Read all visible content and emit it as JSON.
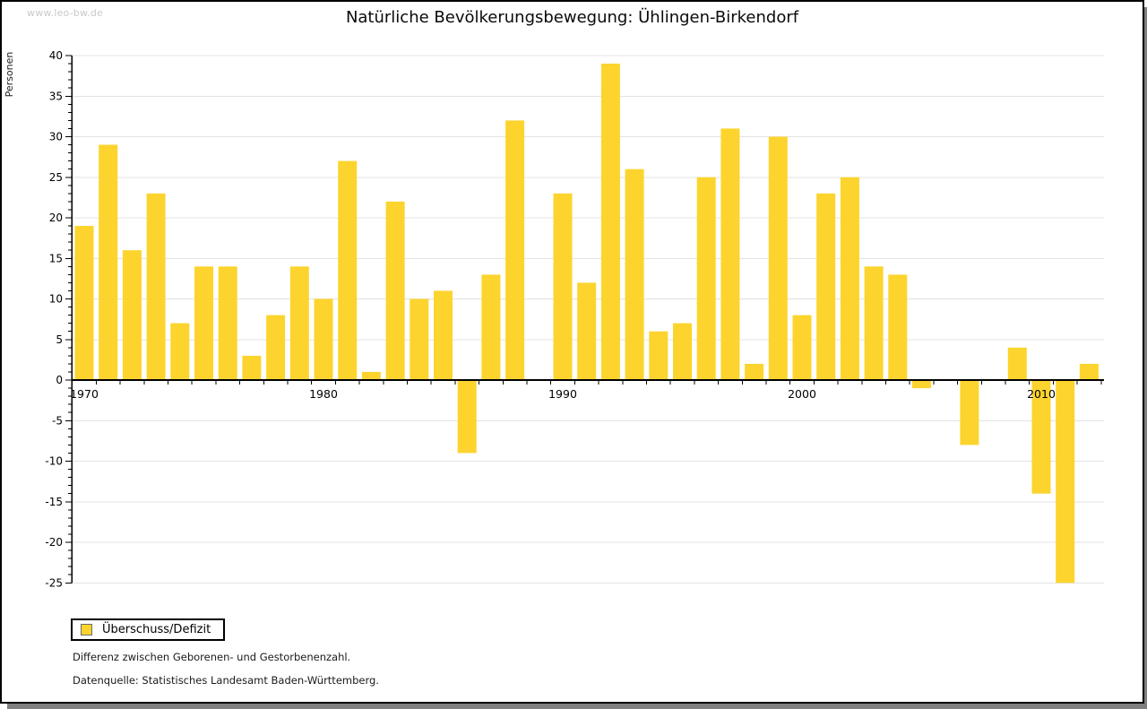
{
  "watermark": "www.leo-bw.de",
  "title": "Natürliche Bevölkerungsbewegung: Ühlingen-Birkendorf",
  "chart_data": {
    "type": "bar",
    "title": "Natürliche Bevölkerungsbewegung: Ühlingen-Birkendorf",
    "xlabel": "",
    "ylabel": "Personen",
    "categories": [
      1970,
      1971,
      1972,
      1973,
      1974,
      1975,
      1976,
      1977,
      1978,
      1979,
      1980,
      1981,
      1982,
      1983,
      1984,
      1985,
      1986,
      1987,
      1988,
      1989,
      1990,
      1991,
      1992,
      1993,
      1994,
      1995,
      1996,
      1997,
      1998,
      1999,
      2000,
      2001,
      2002,
      2003,
      2004,
      2005,
      2006,
      2007,
      2008,
      2009,
      2010,
      2011,
      2012
    ],
    "series": [
      {
        "name": "Überschuss/Defizit",
        "values": [
          19,
          29,
          16,
          23,
          7,
          14,
          14,
          3,
          8,
          14,
          10,
          27,
          1,
          22,
          10,
          11,
          -9,
          13,
          32,
          0,
          23,
          12,
          39,
          26,
          6,
          7,
          25,
          31,
          2,
          30,
          8,
          23,
          25,
          14,
          13,
          -1,
          0,
          -8,
          0,
          4,
          -14,
          -25,
          2
        ]
      }
    ],
    "ylim": [
      -25,
      40
    ],
    "ytick_major": 5,
    "ytick_minor": 1,
    "xtick_labels": [
      1970,
      1980,
      1990,
      2000,
      2010
    ],
    "grid": true,
    "gridline_color": "#e3e3e3",
    "bar_color": "#fcd42d",
    "axis_color": "#000000",
    "legend_position": "bottom-left"
  },
  "legend": {
    "label": "Überschuss/Defizit",
    "swatch_color": "#fcd42d"
  },
  "footnotes": [
    "Differenz zwischen Geborenen- und Gestorbenenzahl.",
    "Datenquelle: Statistisches Landesamt Baden-Württemberg."
  ]
}
